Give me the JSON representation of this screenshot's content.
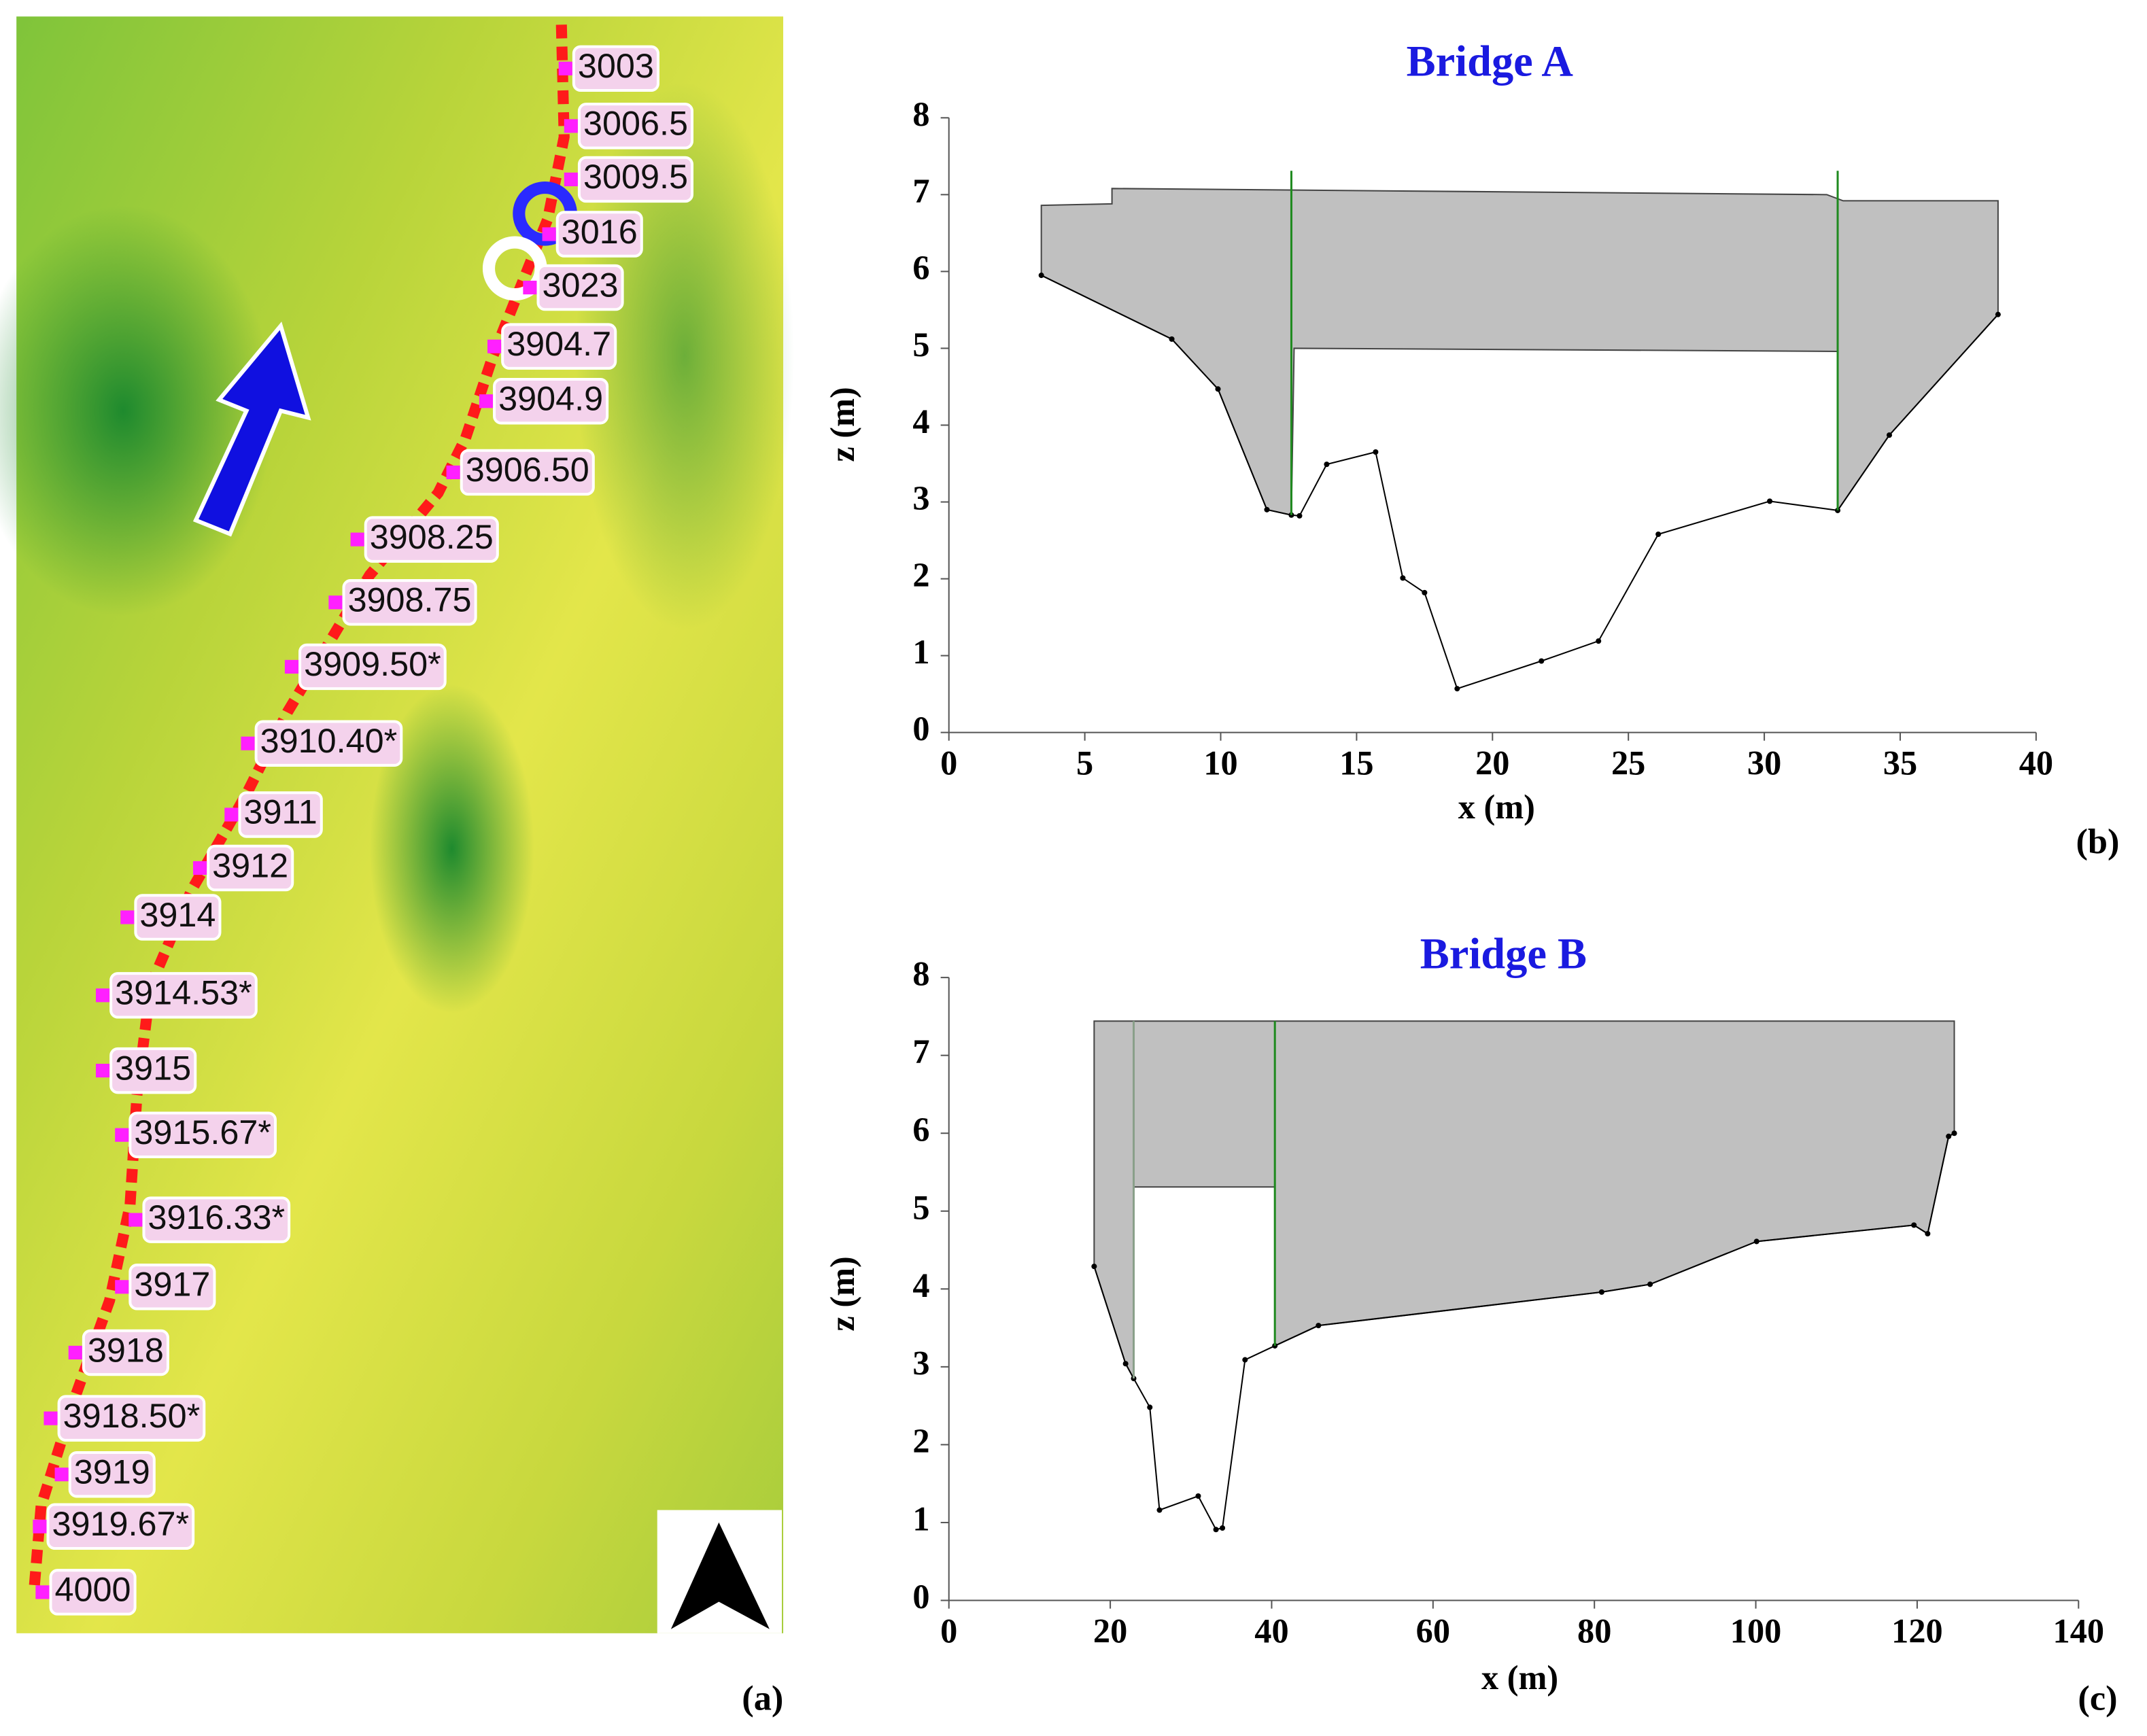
{
  "map": {
    "panel_label": "(a)",
    "labels": [
      "3003",
      "3006.5",
      "3009.5",
      "3016",
      "3023",
      "3904.7",
      "3904.9",
      "3906.50",
      "3908.25",
      "3908.75",
      "3909.50*",
      "3910.40*",
      "3911",
      "3912",
      "3914",
      "3914.53*",
      "3915",
      "3915.67*",
      "3916.33*",
      "3917",
      "3918",
      "3918.50*",
      "3919",
      "3919.67*",
      "4000"
    ]
  },
  "chart_data": [
    {
      "type": "line",
      "title": "Bridge A",
      "panel_label": "(b)",
      "x_label": "x (m)",
      "y_label": "z (m)",
      "xlim": [
        0,
        40
      ],
      "ylim": [
        0,
        8
      ],
      "xticks": [
        0,
        5,
        10,
        15,
        20,
        25,
        30,
        35,
        40
      ],
      "yticks": [
        0,
        1,
        2,
        3,
        4,
        5,
        6,
        7,
        8
      ],
      "series": [
        {
          "type": "area",
          "color": "#c0c0c0",
          "x": [
            3.4,
            6,
            6,
            32.3,
            32.9,
            38.6,
            38.6,
            34.6,
            32.7,
            32.7,
            12.7,
            12.6,
            11.7,
            9.9,
            8.2,
            3.4
          ],
          "values": [
            6.86,
            6.88,
            7.08,
            7.0,
            6.92,
            6.92,
            5.44,
            3.87,
            2.89,
            4.96,
            5.0,
            2.83,
            2.9,
            4.47,
            5.12,
            5.95
          ]
        },
        {
          "type": "line",
          "color": "#000000",
          "x": [
            3.4,
            8.2,
            9.9,
            11.7,
            12.6,
            12.9,
            13.9,
            15.7,
            16.7,
            17.5,
            18.7,
            21.8,
            23.9,
            26.1,
            30.2,
            32.7,
            34.6,
            38.6
          ],
          "values": [
            5.95,
            5.12,
            4.47,
            2.9,
            2.83,
            2.82,
            3.49,
            3.65,
            2.01,
            1.82,
            0.57,
            0.93,
            1.19,
            2.58,
            3.01,
            2.89,
            3.87,
            5.44
          ]
        },
        {
          "type": "segment",
          "color": "#1f8a1f",
          "x": [
            12.6,
            12.6
          ],
          "values": [
            2.83,
            7.31
          ]
        },
        {
          "type": "segment",
          "color": "#1f8a1f",
          "x": [
            32.7,
            32.7
          ],
          "values": [
            2.89,
            7.31
          ]
        }
      ]
    },
    {
      "type": "line",
      "title": "Bridge B",
      "panel_label": "(c)",
      "x_label": "x (m)",
      "y_label": "z (m)",
      "xlim": [
        0,
        140
      ],
      "ylim": [
        0,
        8
      ],
      "xticks": [
        0,
        20,
        40,
        60,
        80,
        100,
        120,
        140
      ],
      "yticks": [
        0,
        1,
        2,
        3,
        4,
        5,
        6,
        7,
        8
      ],
      "series": [
        {
          "type": "area",
          "color": "#c0c0c0",
          "x": [
            18,
            124.6,
            124.6,
            123.9,
            121.3,
            119.6,
            100.1,
            86.9,
            80.9,
            45.8,
            40.4,
            40.4,
            22.9,
            22.9,
            21.9,
            18
          ],
          "values": [
            7.44,
            7.44,
            6.0,
            5.96,
            4.71,
            4.82,
            4.61,
            4.06,
            3.96,
            3.53,
            3.27,
            5.31,
            5.31,
            2.85,
            3.04,
            4.29
          ]
        },
        {
          "type": "line",
          "color": "#000000",
          "x": [
            18,
            21.9,
            22.9,
            24.9,
            26.1,
            30.9,
            33.1,
            33.9,
            36.7,
            40.4,
            45.8,
            80.9,
            86.9,
            100.1,
            119.6,
            121.3,
            123.9,
            124.6
          ],
          "values": [
            4.29,
            3.04,
            2.85,
            2.48,
            1.16,
            1.34,
            0.91,
            0.93,
            3.09,
            3.27,
            3.53,
            3.96,
            4.06,
            4.61,
            4.82,
            4.71,
            5.96,
            6.0
          ]
        },
        {
          "type": "segment",
          "color": "#8aa08a",
          "x": [
            22.9,
            22.9
          ],
          "values": [
            2.85,
            7.44
          ]
        },
        {
          "type": "segment",
          "color": "#1f8a1f",
          "x": [
            40.4,
            40.4
          ],
          "values": [
            3.27,
            7.44
          ]
        }
      ]
    }
  ]
}
